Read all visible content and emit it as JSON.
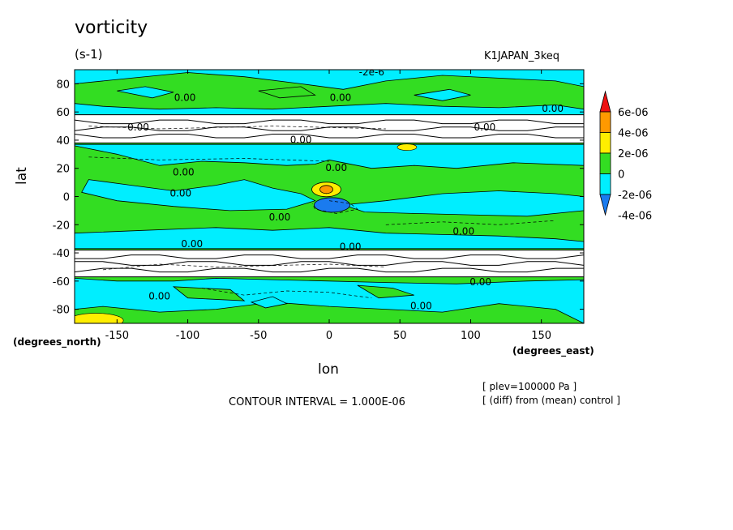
{
  "plot": {
    "title": "vorticity",
    "units": "(s-1)",
    "run_name": "K1JAPAN_3keq",
    "contour_interval": "CONTOUR INTERVAL = 1.000E-06",
    "note_level": "[ plev=100000 Pa ]",
    "note_diff": "[ (diff) from (mean) control ]"
  },
  "chart_data": {
    "type": "heatmap",
    "title": "vorticity",
    "xlabel": "lon",
    "ylabel": "lat",
    "x_units": "(degrees_east)",
    "y_units": "(degrees_north)",
    "xlim": [
      -180,
      180
    ],
    "ylim": [
      -90,
      90
    ],
    "x_ticks": [
      -150,
      -100,
      -50,
      0,
      50,
      100,
      150
    ],
    "x_tick_labels": [
      "-150",
      "-100",
      "-50",
      "0",
      "50",
      "100",
      "150"
    ],
    "y_ticks": [
      -80,
      -60,
      -40,
      -20,
      0,
      20,
      40,
      60,
      80
    ],
    "y_tick_labels": [
      "-80",
      "-60",
      "-40",
      "-20",
      "0",
      "20",
      "40",
      "60",
      "80"
    ],
    "masked_lat_bands": [
      [
        38,
        58
      ],
      [
        -57,
        -38
      ]
    ],
    "colorbar": {
      "labels": [
        "6e-06",
        "4e-06",
        "2e-06",
        "0",
        "-2e-06",
        "-4e-06"
      ],
      "levels": [
        -4e-06,
        -2e-06,
        0,
        2e-06,
        4e-06,
        6e-06
      ],
      "colors": [
        "#1a7bef",
        "#00eeff",
        "#33dd22",
        "#ffee00",
        "#ff9900",
        "#ee1111"
      ]
    },
    "contour_labels": [
      {
        "text": "-2e-6",
        "lon": 30,
        "lat": 86
      },
      {
        "text": "0.00",
        "lon": -102,
        "lat": 68
      },
      {
        "text": "0.00",
        "lon": 8,
        "lat": 68
      },
      {
        "text": "0.00",
        "lon": 158,
        "lat": 60
      },
      {
        "text": "0.00",
        "lon": -135,
        "lat": 47
      },
      {
        "text": "0.00",
        "lon": 110,
        "lat": 47
      },
      {
        "text": "0.00",
        "lon": -20,
        "lat": 38
      },
      {
        "text": "0.00",
        "lon": -103,
        "lat": 15
      },
      {
        "text": "0.00",
        "lon": 5,
        "lat": 18
      },
      {
        "text": "0.00",
        "lon": -105,
        "lat": 0
      },
      {
        "text": "0.00",
        "lon": -35,
        "lat": -17
      },
      {
        "text": "0.00",
        "lon": 95,
        "lat": -27
      },
      {
        "text": "0.00",
        "lon": -97,
        "lat": -36
      },
      {
        "text": "0.00",
        "lon": 15,
        "lat": -38
      },
      {
        "text": "0.00",
        "lon": 107,
        "lat": -63
      },
      {
        "text": "0.00",
        "lon": -120,
        "lat": -73
      },
      {
        "text": "0.00",
        "lon": 65,
        "lat": -80
      }
    ],
    "notable_features": [
      {
        "description": "positive maximum",
        "lon": -2,
        "lat": 5,
        "value_approx": 5e-06
      },
      {
        "description": "negative minimum",
        "lon": 0,
        "lat": -6,
        "value_approx": -4e-06
      }
    ]
  }
}
